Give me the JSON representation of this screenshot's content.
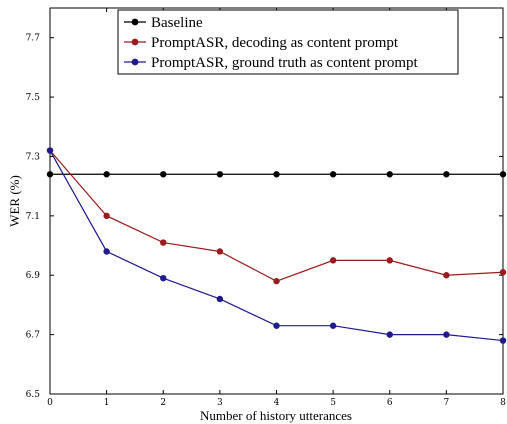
{
  "chart_data": {
    "type": "line",
    "xlabel": "Number of history utterances",
    "ylabel": "WER (%)",
    "xlim": [
      0,
      8
    ],
    "ylim": [
      6.5,
      7.8
    ],
    "x_ticks": [
      0,
      1,
      2,
      3,
      4,
      5,
      6,
      7,
      8
    ],
    "y_ticks": [
      "6.5",
      "6.7",
      "6.9",
      "7.1",
      "7.3",
      "7.5",
      "7.7"
    ],
    "grid": false,
    "legend_position": "top-right",
    "x": [
      0,
      1,
      2,
      3,
      4,
      5,
      6,
      7,
      8
    ],
    "series": [
      {
        "name": "Baseline",
        "color": "#000000",
        "values": [
          7.24,
          7.24,
          7.24,
          7.24,
          7.24,
          7.24,
          7.24,
          7.24,
          7.24
        ]
      },
      {
        "name": "PromptASR, decoding as content prompt",
        "color": "#9b1c1c",
        "values": [
          7.32,
          7.1,
          7.01,
          6.98,
          6.88,
          6.95,
          6.95,
          6.9,
          6.91
        ]
      },
      {
        "name": "PromptASR, ground truth as content prompt",
        "color": "#1f1b8f",
        "values": [
          7.32,
          6.98,
          6.89,
          6.82,
          6.73,
          6.73,
          6.7,
          6.7,
          6.68
        ]
      }
    ]
  }
}
